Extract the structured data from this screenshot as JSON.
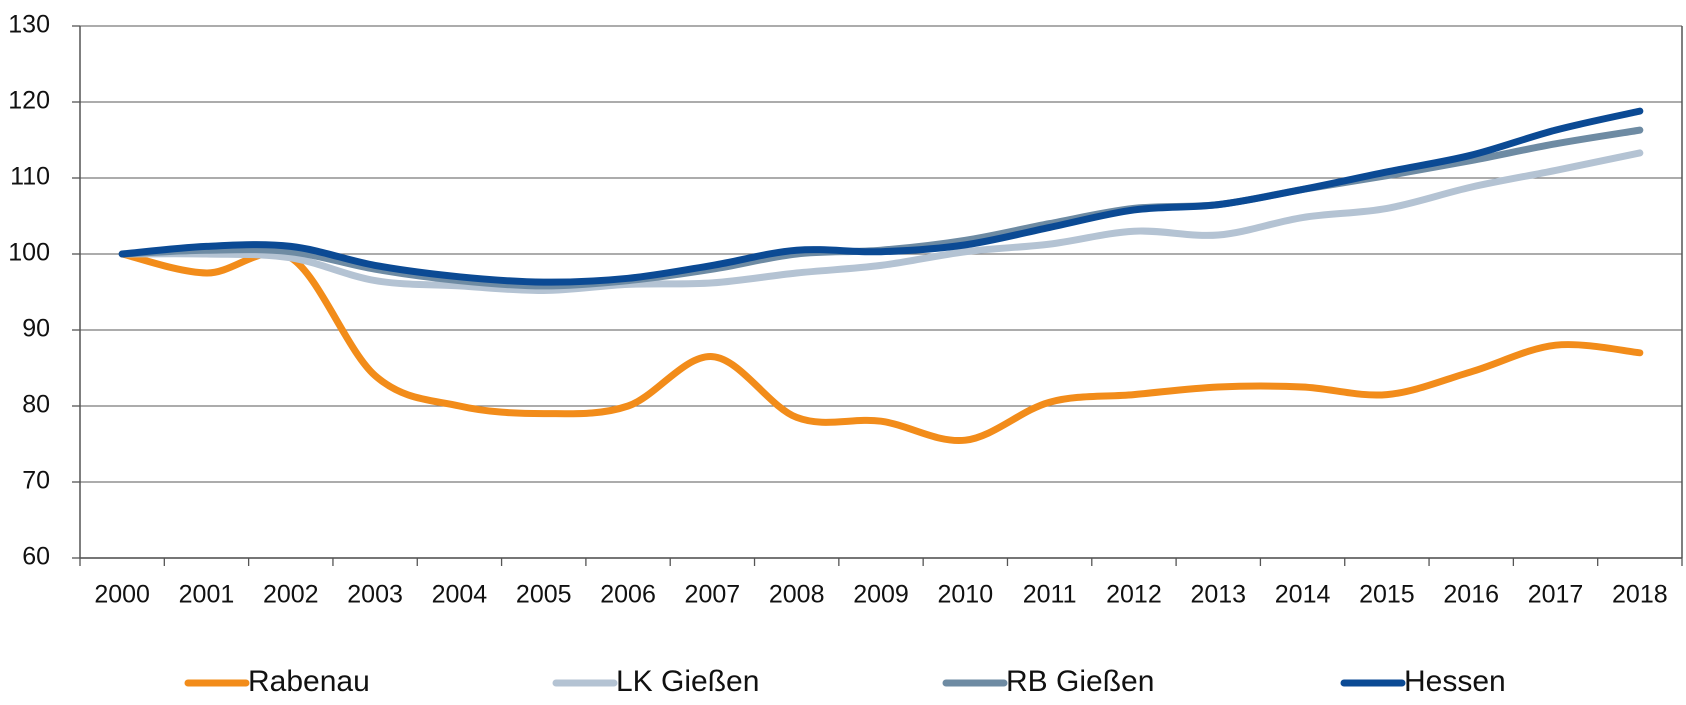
{
  "chart_data": {
    "type": "line",
    "categories": [
      "2000",
      "2001",
      "2002",
      "2003",
      "2004",
      "2005",
      "2006",
      "2007",
      "2008",
      "2009",
      "2010",
      "2011",
      "2012",
      "2013",
      "2014",
      "2015",
      "2016",
      "2017",
      "2018"
    ],
    "series": [
      {
        "name": "Rabenau",
        "color": "#f28c1a",
        "values": [
          100,
          97.5,
          99.5,
          84,
          80,
          79,
          80,
          86.5,
          78.5,
          78,
          75.5,
          80.5,
          81.5,
          82.5,
          82.5,
          81.5,
          84.5,
          88,
          87
        ]
      },
      {
        "name": "LK Gießen",
        "color": "#b4c3d3",
        "values": [
          100,
          100,
          99.5,
          96.5,
          95.8,
          95.2,
          96,
          96.2,
          97.5,
          98.5,
          100.3,
          101.3,
          103,
          102.5,
          104.8,
          106,
          108.8,
          111,
          113.3
        ]
      },
      {
        "name": "RB Gießen",
        "color": "#6e8ba3",
        "values": [
          100,
          100.5,
          100.3,
          98,
          96.5,
          95.8,
          96.5,
          98,
          100,
          100.5,
          101.8,
          104,
          106,
          106.5,
          108.5,
          110.3,
          112.3,
          114.5,
          116.3
        ]
      },
      {
        "name": "Hessen",
        "color": "#0b4a94",
        "values": [
          100,
          101,
          101,
          98.5,
          97,
          96.3,
          96.8,
          98.5,
          100.5,
          100.3,
          101.2,
          103.5,
          105.8,
          106.5,
          108.5,
          110.8,
          113,
          116.3,
          118.8
        ]
      }
    ],
    "ylim": [
      60,
      130
    ],
    "yticks": [
      60,
      70,
      80,
      90,
      100,
      110,
      120,
      130
    ],
    "grid": true,
    "legend": "bottom"
  }
}
